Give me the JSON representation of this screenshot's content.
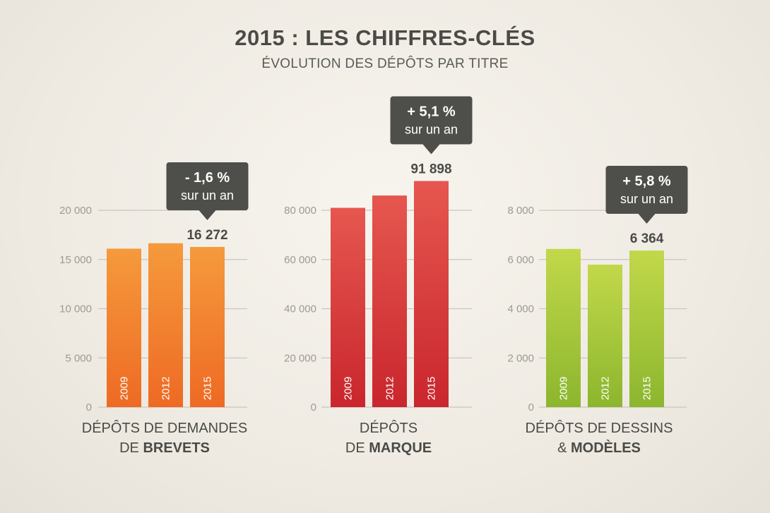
{
  "header": {
    "title": "2015 : LES CHIFFRES-CLÉS",
    "subtitle": "ÉVOLUTION DES DÉPÔTS PAR TITRE"
  },
  "chart_data": [
    {
      "type": "bar",
      "id": "brevets",
      "categories": [
        "2009",
        "2012",
        "2015"
      ],
      "values": [
        16100,
        16650,
        16272
      ],
      "ylim": [
        0,
        20000
      ],
      "yticks": [
        0,
        5000,
        10000,
        15000,
        20000
      ],
      "ytick_labels": [
        "0",
        "5 000",
        "10 000",
        "15 000",
        "20 000"
      ],
      "value_label": "16 272",
      "callout": {
        "change": "- 1,6 %",
        "period": "sur un an"
      },
      "label": {
        "line1": "DÉPÔTS DE DEMANDES",
        "line2_prefix": "DE",
        "line2_bold": "BREVETS"
      },
      "color_top": "#f59a3c",
      "color_bottom": "#ee6a24"
    },
    {
      "type": "bar",
      "id": "marque",
      "categories": [
        "2009",
        "2012",
        "2015"
      ],
      "values": [
        81000,
        86000,
        91898
      ],
      "ylim": [
        0,
        100000
      ],
      "yticks": [
        0,
        20000,
        40000,
        60000,
        80000
      ],
      "ytick_labels": [
        "0",
        "20 000",
        "40 000",
        "60 000",
        "80 000"
      ],
      "value_label": "91 898",
      "callout": {
        "change": "+ 5,1 %",
        "period": "sur un an"
      },
      "label": {
        "line1": "DÉPÔTS",
        "line2_prefix": "DE",
        "line2_bold": "MARQUE"
      },
      "color_top": "#e6574f",
      "color_bottom": "#c9262d"
    },
    {
      "type": "bar",
      "id": "dessins",
      "categories": [
        "2009",
        "2012",
        "2015"
      ],
      "values": [
        6430,
        5790,
        6364
      ],
      "ylim": [
        0,
        8000
      ],
      "yticks": [
        0,
        2000,
        4000,
        6000,
        8000
      ],
      "ytick_labels": [
        "0",
        "2 000",
        "4 000",
        "6 000",
        "8 000"
      ],
      "value_label": "6 364",
      "callout": {
        "change": "+ 5,8 %",
        "period": "sur un an"
      },
      "label": {
        "line1": "DÉPÔTS DE DESSINS",
        "line2_prefix": "&",
        "line2_bold": "MODÈLES"
      },
      "color_top": "#c2d84a",
      "color_bottom": "#8cb62e"
    }
  ]
}
